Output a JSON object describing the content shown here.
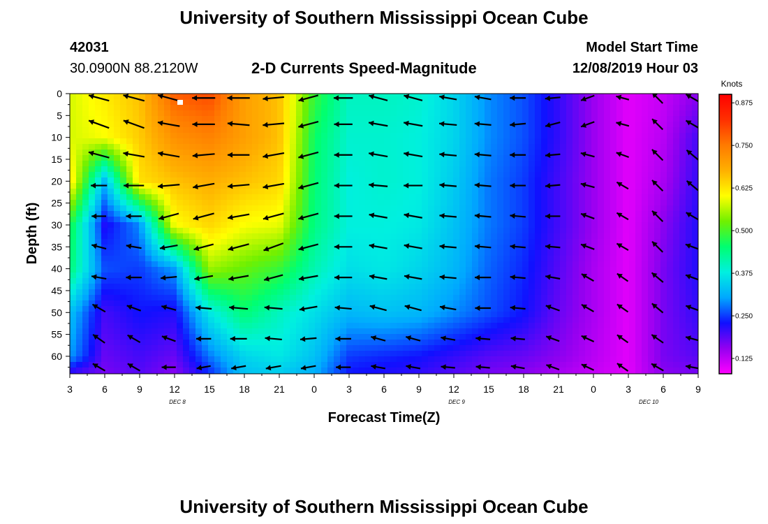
{
  "header": {
    "title": "University of Southern Mississippi Ocean Cube",
    "station_id": "42031",
    "coordinates": "30.0900N 88.2120W",
    "product": "2-D Currents Speed-Magnitude",
    "model_start_label": "Model Start Time",
    "model_start_value": "12/08/2019 Hour 03"
  },
  "footer": {
    "title": "University of Southern Mississippi Ocean Cube"
  },
  "chart_data": {
    "type": "heatmap",
    "title": "2-D Currents Speed-Magnitude",
    "xlabel": "Forecast Time(Z)",
    "ylabel": "Depth (ft)",
    "x_tick_labels": [
      "3",
      "6",
      "9",
      "12",
      "15",
      "18",
      "21",
      "0",
      "3",
      "6",
      "9",
      "12",
      "15",
      "18",
      "21",
      "0",
      "3",
      "6",
      "9"
    ],
    "day_labels": [
      {
        "text": "DEC 8",
        "at_tick": 3
      },
      {
        "text": "DEC 9",
        "at_tick": 11
      },
      {
        "text": "DEC 10",
        "at_tick": 16.5
      }
    ],
    "y_tick_labels": [
      "0",
      "5",
      "10",
      "15",
      "20",
      "25",
      "30",
      "35",
      "40",
      "45",
      "50",
      "55",
      "60"
    ],
    "ylim": [
      0,
      64
    ],
    "x_range_hours": [
      3,
      57
    ],
    "colorbar": {
      "title": "Knots",
      "ticks": [
        "0.875",
        "0.750",
        "0.625",
        "0.500",
        "0.375",
        "0.250",
        "0.125"
      ],
      "range": [
        0.08,
        0.9
      ],
      "colors": [
        "#ff00ff",
        "#9400f0",
        "#1010ff",
        "#00a8ff",
        "#00f0e0",
        "#00ff70",
        "#70f000",
        "#ffff00",
        "#ffb000",
        "#ff7a00",
        "#ff3000",
        "#ff0000"
      ]
    },
    "hours": [
      3,
      6,
      9,
      12,
      15,
      18,
      21,
      24,
      27,
      30,
      33,
      36,
      39,
      42,
      45,
      48,
      51,
      54,
      57
    ],
    "depths": [
      0,
      10,
      20,
      30,
      40,
      50,
      60,
      64
    ],
    "speed_knots": [
      [
        0.58,
        0.58,
        0.63,
        0.48,
        0.45,
        0.33,
        0.3,
        0.2
      ],
      [
        0.62,
        0.6,
        0.32,
        0.22,
        0.26,
        0.2,
        0.18,
        0.17
      ],
      [
        0.66,
        0.65,
        0.63,
        0.29,
        0.25,
        0.23,
        0.2,
        0.19
      ],
      [
        0.78,
        0.72,
        0.66,
        0.6,
        0.3,
        0.22,
        0.18,
        0.16
      ],
      [
        0.8,
        0.74,
        0.68,
        0.64,
        0.55,
        0.37,
        0.28,
        0.24
      ],
      [
        0.7,
        0.7,
        0.66,
        0.6,
        0.52,
        0.45,
        0.35,
        0.33
      ],
      [
        0.66,
        0.66,
        0.64,
        0.59,
        0.49,
        0.4,
        0.37,
        0.34
      ],
      [
        0.49,
        0.46,
        0.45,
        0.44,
        0.41,
        0.36,
        0.33,
        0.31
      ],
      [
        0.4,
        0.39,
        0.38,
        0.38,
        0.36,
        0.32,
        0.25,
        0.23
      ],
      [
        0.4,
        0.39,
        0.39,
        0.38,
        0.37,
        0.33,
        0.24,
        0.22
      ],
      [
        0.39,
        0.38,
        0.38,
        0.37,
        0.35,
        0.32,
        0.23,
        0.21
      ],
      [
        0.35,
        0.35,
        0.34,
        0.33,
        0.32,
        0.29,
        0.21,
        0.19
      ],
      [
        0.29,
        0.29,
        0.28,
        0.28,
        0.27,
        0.26,
        0.19,
        0.17
      ],
      [
        0.26,
        0.26,
        0.25,
        0.25,
        0.24,
        0.23,
        0.18,
        0.16
      ],
      [
        0.21,
        0.21,
        0.2,
        0.2,
        0.19,
        0.18,
        0.16,
        0.14
      ],
      [
        0.15,
        0.15,
        0.15,
        0.15,
        0.14,
        0.14,
        0.13,
        0.12
      ],
      [
        0.1,
        0.1,
        0.1,
        0.1,
        0.1,
        0.1,
        0.1,
        0.1
      ],
      [
        0.12,
        0.13,
        0.14,
        0.16,
        0.17,
        0.17,
        0.17,
        0.16
      ],
      [
        0.16,
        0.2,
        0.21,
        0.22,
        0.22,
        0.21,
        0.19,
        0.17
      ]
    ],
    "vectors": {
      "rows_depth_ft": [
        1,
        7,
        14,
        21,
        28,
        35,
        42,
        49,
        56,
        62.5
      ],
      "cols_hours": [
        5.5,
        8.5,
        11.5,
        14.5,
        17.5,
        20.5,
        23.5,
        26.5,
        29.5,
        32.5,
        35.5,
        38.5,
        41.5,
        44.5,
        47.5,
        50.5,
        53.5,
        56.5
      ],
      "dir_deg": [
        [
          195,
          195,
          195,
          180,
          180,
          175,
          165,
          180,
          195,
          195,
          190,
          190,
          180,
          175,
          160,
          195,
          225,
          210
        ],
        [
          200,
          200,
          190,
          180,
          185,
          175,
          165,
          180,
          190,
          190,
          185,
          185,
          175,
          165,
          160,
          195,
          225,
          210
        ],
        [
          195,
          190,
          190,
          175,
          180,
          170,
          165,
          180,
          190,
          190,
          185,
          185,
          180,
          175,
          195,
          200,
          225,
          220
        ],
        [
          180,
          180,
          175,
          170,
          175,
          170,
          165,
          180,
          185,
          180,
          185,
          185,
          180,
          175,
          195,
          210,
          225,
          220
        ],
        [
          180,
          180,
          165,
          165,
          170,
          165,
          165,
          180,
          190,
          190,
          185,
          185,
          185,
          180,
          200,
          210,
          225,
          210
        ],
        [
          195,
          190,
          170,
          165,
          165,
          160,
          165,
          180,
          190,
          190,
          185,
          185,
          185,
          185,
          200,
          210,
          225,
          200
        ],
        [
          190,
          180,
          175,
          170,
          170,
          165,
          170,
          180,
          190,
          190,
          185,
          180,
          185,
          190,
          210,
          215,
          220,
          200
        ],
        [
          210,
          200,
          195,
          185,
          185,
          185,
          170,
          185,
          195,
          195,
          190,
          180,
          185,
          200,
          210,
          215,
          220,
          200
        ],
        [
          215,
          210,
          200,
          180,
          180,
          185,
          175,
          180,
          195,
          195,
          190,
          185,
          185,
          200,
          205,
          215,
          215,
          195
        ],
        [
          210,
          210,
          180,
          170,
          170,
          170,
          170,
          180,
          190,
          190,
          185,
          185,
          190,
          200,
          205,
          215,
          210,
          190
        ]
      ],
      "mag": [
        [
          0.65,
          0.7,
          0.73,
          0.78,
          0.74,
          0.66,
          0.6,
          0.52,
          0.53,
          0.52,
          0.42,
          0.36,
          0.31,
          0.27,
          0.2,
          0.14,
          0.25,
          0.24
        ],
        [
          0.68,
          0.71,
          0.72,
          0.74,
          0.71,
          0.67,
          0.62,
          0.47,
          0.53,
          0.52,
          0.42,
          0.36,
          0.31,
          0.27,
          0.2,
          0.14,
          0.25,
          0.24
        ],
        [
          0.66,
          0.68,
          0.7,
          0.72,
          0.7,
          0.68,
          0.62,
          0.46,
          0.52,
          0.51,
          0.4,
          0.36,
          0.31,
          0.25,
          0.2,
          0.14,
          0.27,
          0.25
        ],
        [
          0.33,
          0.6,
          0.7,
          0.7,
          0.7,
          0.67,
          0.62,
          0.45,
          0.5,
          0.5,
          0.39,
          0.36,
          0.3,
          0.25,
          0.2,
          0.14,
          0.26,
          0.23
        ],
        [
          0.22,
          0.3,
          0.62,
          0.68,
          0.7,
          0.66,
          0.62,
          0.45,
          0.48,
          0.48,
          0.39,
          0.35,
          0.3,
          0.25,
          0.2,
          0.14,
          0.26,
          0.22
        ],
        [
          0.25,
          0.28,
          0.45,
          0.6,
          0.68,
          0.64,
          0.6,
          0.44,
          0.47,
          0.47,
          0.38,
          0.34,
          0.29,
          0.25,
          0.2,
          0.14,
          0.25,
          0.22
        ],
        [
          0.25,
          0.3,
          0.33,
          0.5,
          0.6,
          0.54,
          0.54,
          0.42,
          0.44,
          0.44,
          0.37,
          0.33,
          0.28,
          0.24,
          0.19,
          0.14,
          0.24,
          0.2
        ],
        [
          0.24,
          0.24,
          0.25,
          0.32,
          0.5,
          0.45,
          0.45,
          0.37,
          0.4,
          0.4,
          0.35,
          0.3,
          0.27,
          0.23,
          0.19,
          0.14,
          0.21,
          0.18
        ],
        [
          0.22,
          0.22,
          0.22,
          0.25,
          0.36,
          0.38,
          0.34,
          0.3,
          0.25,
          0.25,
          0.23,
          0.22,
          0.2,
          0.19,
          0.17,
          0.14,
          0.2,
          0.17
        ],
        [
          0.2,
          0.2,
          0.19,
          0.2,
          0.24,
          0.28,
          0.26,
          0.24,
          0.22,
          0.22,
          0.2,
          0.19,
          0.18,
          0.17,
          0.16,
          0.14,
          0.18,
          0.16
        ]
      ]
    }
  }
}
